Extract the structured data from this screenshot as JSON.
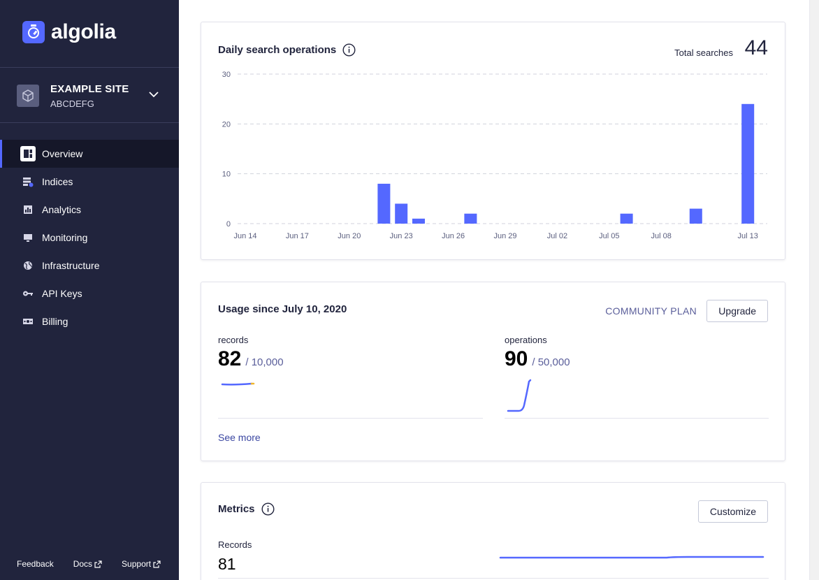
{
  "sidebar": {
    "brand": "algolia",
    "app": {
      "name": "EXAMPLE SITE",
      "id": "ABCDEFG"
    },
    "nav": [
      {
        "label": "Overview",
        "icon": "overview-icon",
        "active": true
      },
      {
        "label": "Indices",
        "icon": "indices-icon"
      },
      {
        "label": "Analytics",
        "icon": "analytics-icon"
      },
      {
        "label": "Monitoring",
        "icon": "monitoring-icon"
      },
      {
        "label": "Infrastructure",
        "icon": "infrastructure-icon"
      },
      {
        "label": "API Keys",
        "icon": "key-icon"
      },
      {
        "label": "Billing",
        "icon": "billing-icon"
      }
    ],
    "footer": {
      "feedback": "Feedback",
      "docs": "Docs",
      "support": "Support"
    }
  },
  "search_ops": {
    "title": "Daily search operations",
    "total_label": "Total searches",
    "total_value": "44"
  },
  "chart_data": {
    "type": "bar",
    "title": "Daily search operations",
    "x_tick_labels": [
      "Jun 14",
      "Jun 17",
      "Jun 20",
      "Jun 23",
      "Jun 26",
      "Jun 29",
      "Jul 02",
      "Jul 05",
      "Jul 08",
      "Jul 13"
    ],
    "y_ticks": [
      0,
      10,
      20,
      30
    ],
    "ylim": [
      0,
      30
    ],
    "grid": true,
    "bars": [
      {
        "date": "Jun 22",
        "value": 8
      },
      {
        "date": "Jun 23",
        "value": 4
      },
      {
        "date": "Jun 24",
        "value": 1
      },
      {
        "date": "Jun 27",
        "value": 2
      },
      {
        "date": "Jul 06",
        "value": 2
      },
      {
        "date": "Jul 10",
        "value": 3
      },
      {
        "date": "Jul 13",
        "value": 24
      }
    ],
    "color": "#5468ff"
  },
  "usage": {
    "title": "Usage since July 10, 2020",
    "plan": "COMMUNITY PLAN",
    "upgrade": "Upgrade",
    "records": {
      "label": "records",
      "value": "82",
      "limit": "/ 10,000"
    },
    "operations": {
      "label": "operations",
      "value": "90",
      "limit": "/ 50,000"
    },
    "see_more": "See more"
  },
  "metrics": {
    "title": "Metrics",
    "customize": "Customize",
    "records_label": "Records",
    "records_value": "81"
  }
}
